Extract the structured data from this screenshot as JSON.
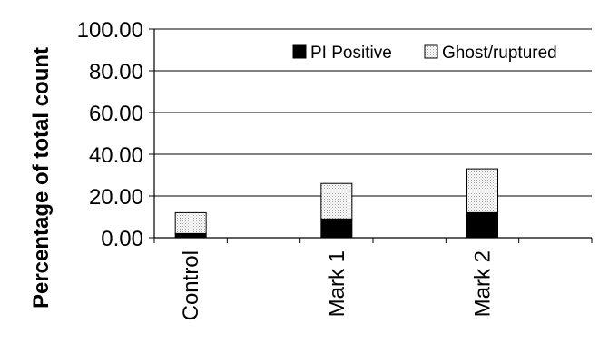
{
  "chart_data": {
    "type": "bar",
    "stacked": true,
    "ylabel": "Percentage of total count",
    "xlabel": "",
    "ylim": [
      0,
      100
    ],
    "yticks": [
      "0.00",
      "20.00",
      "40.00",
      "60.00",
      "80.00",
      "100.00"
    ],
    "grid": true,
    "legend_position": "top-right",
    "categories": [
      "Control",
      "",
      "Mark 1",
      "",
      "Mark 2",
      ""
    ],
    "series": [
      {
        "name": "PI Positive",
        "values": [
          2,
          null,
          9,
          null,
          12,
          null
        ],
        "color": "#000000",
        "pattern": "solid"
      },
      {
        "name": "Ghost/ruptured",
        "values": [
          10,
          null,
          17,
          null,
          21,
          null
        ],
        "color": "#d9d9d9",
        "pattern": "dotted"
      }
    ]
  }
}
